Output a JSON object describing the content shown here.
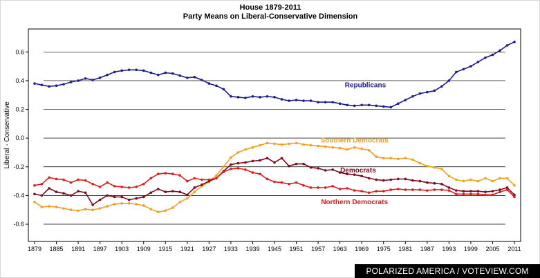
{
  "chart_data": {
    "type": "line",
    "title": "House 1879-2011",
    "subtitle": "Party Means on Liberal-Conservative Dimension",
    "ylabel": "Liberal - Conservative",
    "xlabel": "",
    "xlim": [
      1879,
      2011
    ],
    "ylim": [
      -0.72,
      0.76
    ],
    "yticks": [
      -0.6,
      -0.4,
      -0.2,
      0.0,
      0.2,
      0.4,
      0.6
    ],
    "ytick_labels": [
      "-0.6",
      "-0.4",
      "-0.2",
      "0.0",
      "0.2",
      "0.4",
      "0.6"
    ],
    "xticks": [
      1879,
      1885,
      1891,
      1897,
      1903,
      1909,
      1915,
      1921,
      1927,
      1933,
      1939,
      1945,
      1951,
      1957,
      1963,
      1969,
      1975,
      1981,
      1987,
      1993,
      1999,
      2005,
      2011
    ],
    "grid": "horizontal",
    "x": [
      1879,
      1881,
      1883,
      1885,
      1887,
      1889,
      1891,
      1893,
      1895,
      1897,
      1899,
      1901,
      1903,
      1905,
      1907,
      1909,
      1911,
      1913,
      1915,
      1917,
      1919,
      1921,
      1923,
      1925,
      1927,
      1929,
      1931,
      1933,
      1935,
      1937,
      1939,
      1941,
      1943,
      1945,
      1947,
      1949,
      1951,
      1953,
      1955,
      1957,
      1959,
      1961,
      1963,
      1965,
      1967,
      1969,
      1971,
      1973,
      1975,
      1977,
      1979,
      1981,
      1983,
      1985,
      1987,
      1989,
      1991,
      1993,
      1995,
      1997,
      1999,
      2001,
      2003,
      2005,
      2007,
      2009,
      2011
    ],
    "series": [
      {
        "name": "Republicans",
        "color": "#1c1c8c",
        "values": [
          0.38,
          0.37,
          0.36,
          0.365,
          0.375,
          0.39,
          0.4,
          0.415,
          0.405,
          0.42,
          0.44,
          0.46,
          0.47,
          0.475,
          0.475,
          0.47,
          0.455,
          0.44,
          0.455,
          0.45,
          0.435,
          0.42,
          0.425,
          0.405,
          0.38,
          0.365,
          0.34,
          0.29,
          0.285,
          0.28,
          0.29,
          0.285,
          0.29,
          0.285,
          0.27,
          0.26,
          0.265,
          0.26,
          0.26,
          0.25,
          0.25,
          0.25,
          0.24,
          0.23,
          0.225,
          0.23,
          0.23,
          0.225,
          0.22,
          0.215,
          0.24,
          0.265,
          0.29,
          0.31,
          0.32,
          0.33,
          0.36,
          0.4,
          0.46,
          0.48,
          0.5,
          0.53,
          0.56,
          0.58,
          0.61,
          0.645,
          0.67
        ]
      },
      {
        "name": "Southern Democrats",
        "color": "#f0a020",
        "values": [
          -0.445,
          -0.48,
          -0.475,
          -0.48,
          -0.49,
          -0.5,
          -0.505,
          -0.495,
          -0.5,
          -0.49,
          -0.475,
          -0.46,
          -0.455,
          -0.455,
          -0.46,
          -0.47,
          -0.495,
          -0.515,
          -0.505,
          -0.485,
          -0.445,
          -0.42,
          -0.375,
          -0.335,
          -0.305,
          -0.26,
          -0.2,
          -0.135,
          -0.1,
          -0.08,
          -0.065,
          -0.05,
          -0.035,
          -0.04,
          -0.045,
          -0.04,
          -0.035,
          -0.045,
          -0.05,
          -0.055,
          -0.06,
          -0.065,
          -0.07,
          -0.08,
          -0.065,
          -0.075,
          -0.085,
          -0.13,
          -0.14,
          -0.14,
          -0.145,
          -0.14,
          -0.15,
          -0.175,
          -0.195,
          -0.205,
          -0.215,
          -0.265,
          -0.29,
          -0.3,
          -0.29,
          -0.3,
          -0.28,
          -0.3,
          -0.28,
          -0.28,
          -0.33
        ]
      },
      {
        "name": "Democrats",
        "color": "#7a0a1c",
        "values": [
          -0.39,
          -0.4,
          -0.35,
          -0.375,
          -0.385,
          -0.4,
          -0.37,
          -0.38,
          -0.465,
          -0.43,
          -0.4,
          -0.41,
          -0.41,
          -0.43,
          -0.42,
          -0.41,
          -0.38,
          -0.355,
          -0.375,
          -0.37,
          -0.375,
          -0.395,
          -0.345,
          -0.325,
          -0.3,
          -0.28,
          -0.23,
          -0.185,
          -0.175,
          -0.17,
          -0.16,
          -0.155,
          -0.14,
          -0.17,
          -0.14,
          -0.195,
          -0.18,
          -0.18,
          -0.205,
          -0.21,
          -0.225,
          -0.22,
          -0.24,
          -0.25,
          -0.255,
          -0.265,
          -0.28,
          -0.29,
          -0.295,
          -0.29,
          -0.285,
          -0.285,
          -0.295,
          -0.3,
          -0.31,
          -0.315,
          -0.32,
          -0.345,
          -0.365,
          -0.37,
          -0.37,
          -0.37,
          -0.375,
          -0.37,
          -0.36,
          -0.345,
          -0.395
        ]
      },
      {
        "name": "Northern Democrats",
        "color": "#dd1c1c",
        "values": [
          -0.33,
          -0.32,
          -0.275,
          -0.285,
          -0.29,
          -0.31,
          -0.29,
          -0.295,
          -0.32,
          -0.34,
          -0.31,
          -0.335,
          -0.34,
          -0.345,
          -0.34,
          -0.32,
          -0.28,
          -0.25,
          -0.245,
          -0.25,
          -0.26,
          -0.3,
          -0.28,
          -0.29,
          -0.29,
          -0.28,
          -0.235,
          -0.215,
          -0.21,
          -0.22,
          -0.24,
          -0.25,
          -0.285,
          -0.305,
          -0.31,
          -0.32,
          -0.31,
          -0.33,
          -0.345,
          -0.345,
          -0.345,
          -0.335,
          -0.355,
          -0.35,
          -0.365,
          -0.37,
          -0.38,
          -0.37,
          -0.37,
          -0.36,
          -0.355,
          -0.36,
          -0.36,
          -0.36,
          -0.365,
          -0.36,
          -0.36,
          -0.365,
          -0.39,
          -0.39,
          -0.39,
          -0.39,
          -0.395,
          -0.395,
          -0.375,
          -0.36,
          -0.41
        ]
      }
    ],
    "labels": [
      {
        "text": "Republicans",
        "series": "Republicans",
        "x": 1970,
        "y": 0.355
      },
      {
        "text": "Southern Democrats",
        "series": "Southern Democrats",
        "x": 1967,
        "y": -0.03
      },
      {
        "text": "Democrats",
        "series": "Democrats",
        "x": 1968,
        "y": -0.24
      },
      {
        "text": "Northern Democrats",
        "series": "Northern Democrats",
        "x": 1967,
        "y": -0.46
      }
    ]
  },
  "credit": "POLARIZED AMERICA / VOTEVIEW.COM"
}
